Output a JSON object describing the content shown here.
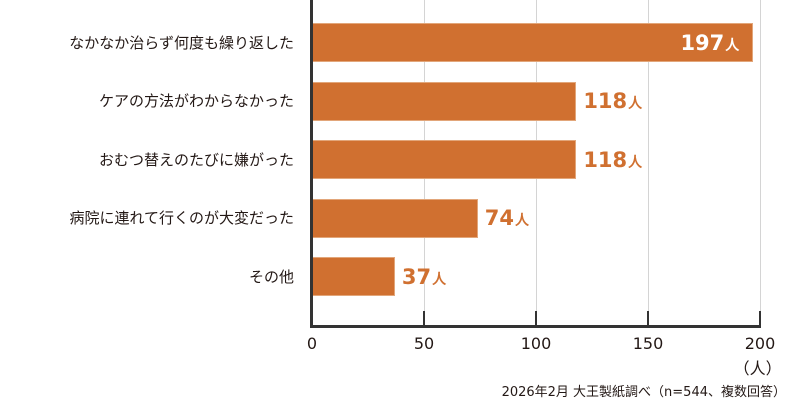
{
  "chart_data": {
    "type": "bar",
    "orientation": "horizontal",
    "categories": [
      "なかなか治らず何度も繰り返した",
      "ケアの方法がわからなかった",
      "おむつ替えのたびに嫌がった",
      "病院に連れて行くのが大変だった",
      "その他"
    ],
    "values": [
      197,
      118,
      118,
      74,
      37
    ],
    "value_labels": [
      "197",
      "118",
      "118",
      "74",
      "37"
    ],
    "value_unit": "人",
    "title": "",
    "xlabel": "（人）",
    "ylabel": "",
    "xlim": [
      0,
      200
    ],
    "xticks": [
      "0",
      "50",
      "100",
      "150",
      "200"
    ],
    "grid": true,
    "legend": null,
    "bar_color": "#d07030",
    "label_color": "#d07030",
    "inside_label_color": "#ffffff",
    "source_note": "2026年2月 大王製紙調べ（n=544、複数回答）"
  }
}
